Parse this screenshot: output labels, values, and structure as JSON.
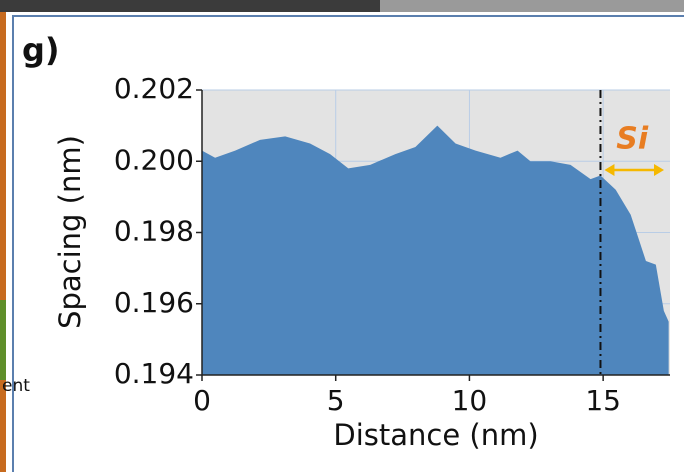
{
  "panel_label": "g)",
  "fragment_text": "ent",
  "chart_data": {
    "type": "area",
    "xlabel": "Distance (nm)",
    "ylabel": "Spacing (nm)",
    "xlim": [
      0,
      17.5
    ],
    "ylim": [
      0.194,
      0.202
    ],
    "xticks": [
      0,
      5,
      10,
      15
    ],
    "yticks": [
      0.194,
      0.196,
      0.198,
      {
        "value": 0.2,
        "label": "0.200"
      },
      0.202
    ],
    "grid": true,
    "series": [
      {
        "color": "#4f86bd",
        "x": [
          0,
          0.49,
          1.24,
          2.17,
          3.11,
          4.04,
          4.79,
          5.47,
          6.29,
          7.23,
          7.98,
          8.8,
          9.48,
          10.23,
          11.16,
          11.8,
          12.28,
          13.03,
          13.78,
          14.53,
          14.9,
          15.47,
          16.03,
          16.6,
          16.97,
          17.27,
          17.45
        ],
        "values": [
          0.2003,
          0.2001,
          0.2003,
          0.2006,
          0.2007,
          0.2005,
          0.2002,
          0.1998,
          0.1999,
          0.2002,
          0.2004,
          0.201,
          0.2005,
          0.2003,
          0.2001,
          0.2003,
          0.2,
          0.2,
          0.1999,
          0.1995,
          0.1996,
          0.1992,
          0.1985,
          0.1972,
          0.1971,
          0.1958,
          0.1955
        ]
      }
    ],
    "vline_x": 14.9,
    "annotation": {
      "text": "Si",
      "color": "#e87d22",
      "arrow_color": "#f5b800"
    }
  }
}
